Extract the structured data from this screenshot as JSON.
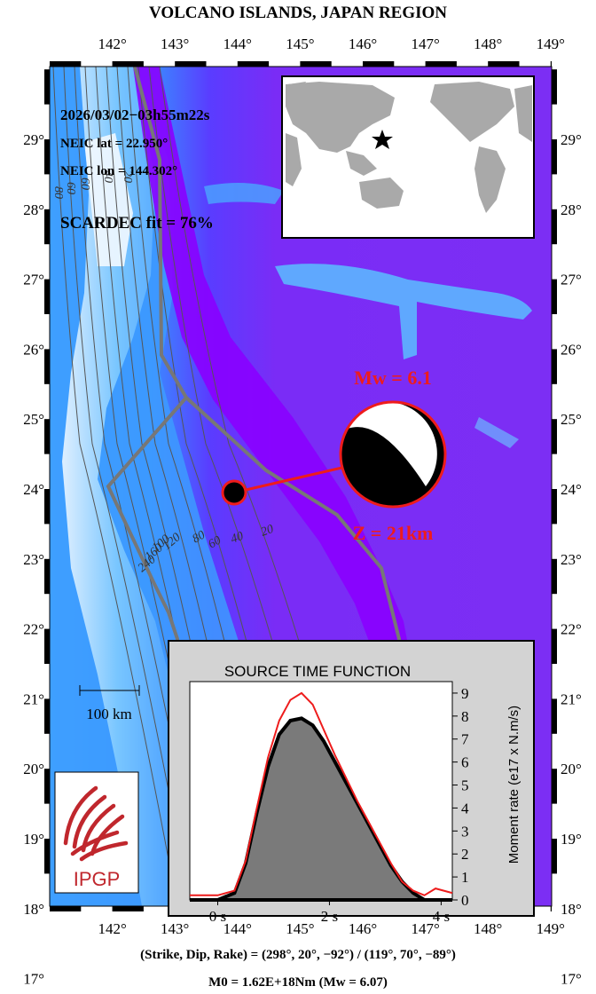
{
  "title": "VOLCANO ISLANDS, JAPAN REGION",
  "x_ticks": [
    "142°",
    "143°",
    "144°",
    "145°",
    "146°",
    "147°",
    "148°",
    "149°"
  ],
  "y_ticks": [
    "29°",
    "28°",
    "27°",
    "26°",
    "25°",
    "24°",
    "23°",
    "22°",
    "21°",
    "20°",
    "19°",
    "18°",
    "17°"
  ],
  "event": {
    "datetime": "2026/03/02−03h55m22s",
    "lat_text": "NEIC lat  = 22.950°",
    "lon_text": "NEIC lon = 144.302°",
    "fit_text": "SCARDEC fit = 76%",
    "mw_text": "Mw = 6.1",
    "depth_text": "Z =  21km",
    "lat": 22.95,
    "lon": 144.302
  },
  "contour_labels": [
    "20",
    "40",
    "60",
    "80",
    "120",
    "160",
    "240",
    "100",
    "80",
    "60",
    "60",
    "40",
    "20"
  ],
  "scale_bar": {
    "label": "100 km"
  },
  "logo": {
    "text": "IPGP",
    "color": "#c0272d"
  },
  "stf": {
    "title": "SOURCE TIME FUNCTION",
    "ylabel": "Moment rate (e17 x N.m/s)",
    "x_tick_labels": [
      "0 s",
      "2 s",
      "4 s"
    ],
    "y_tick_labels": [
      "0",
      "1",
      "2",
      "3",
      "4",
      "5",
      "6",
      "7",
      "8",
      "9"
    ]
  },
  "mechanism_text": "(Strike, Dip, Rake) = (298°, 20°, −92°) / (119°, 70°, −89°)",
  "moment_text": "M0 = 1.62E+18Nm  (Mw = 6.07)",
  "colors": {
    "ocean": "#7b2cf6",
    "trench": "#8a00ff",
    "shallow": "#3aa6ff",
    "accent": "#ee1c1c",
    "plate_line": "#777777"
  },
  "chart_data": {
    "type": "line",
    "title": "SOURCE TIME FUNCTION",
    "xlabel": "",
    "ylabel": "Moment rate (e17 x N.m/s)",
    "xlim": [
      -0.5,
      4.2
    ],
    "ylim": [
      0,
      9.5
    ],
    "series": [
      {
        "x": [
          -0.5,
          0,
          0.3,
          0.5,
          0.7,
          0.9,
          1.1,
          1.3,
          1.5,
          1.7,
          1.9,
          2.1,
          2.3,
          2.5,
          2.7,
          2.9,
          3.1,
          3.3,
          3.5,
          3.7,
          4.2
        ],
        "y": [
          0,
          0,
          0.3,
          1.6,
          3.8,
          5.8,
          7.2,
          7.8,
          7.9,
          7.6,
          6.9,
          6.0,
          5.1,
          4.2,
          3.3,
          2.4,
          1.5,
          0.8,
          0.3,
          0,
          0
        ]
      },
      {
        "x": [
          -0.5,
          0,
          0.3,
          0.5,
          0.7,
          0.9,
          1.1,
          1.3,
          1.5,
          1.7,
          1.9,
          2.1,
          2.3,
          2.5,
          2.7,
          2.9,
          3.1,
          3.3,
          3.5,
          3.7,
          3.9,
          4.2
        ],
        "y": [
          0.2,
          0.2,
          0.4,
          1.7,
          4.0,
          6.2,
          7.8,
          8.7,
          9.0,
          8.5,
          7.4,
          6.3,
          5.3,
          4.3,
          3.4,
          2.5,
          1.6,
          0.8,
          0.4,
          0.2,
          0.5,
          0.3
        ]
      }
    ]
  }
}
